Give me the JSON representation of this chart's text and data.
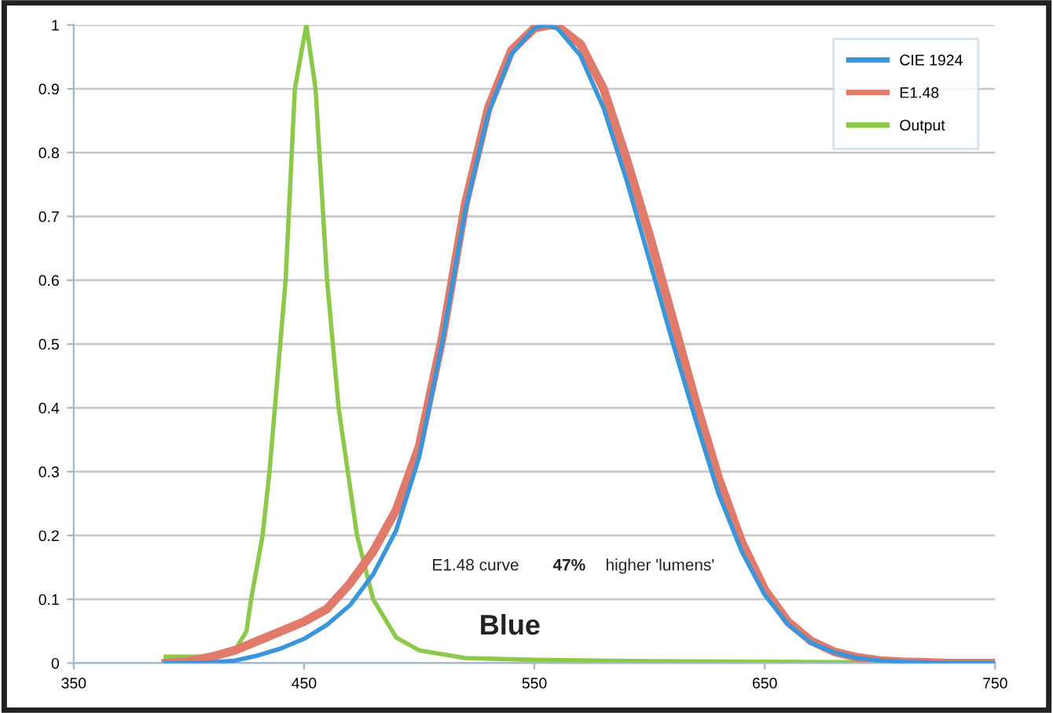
{
  "chart_data": {
    "type": "line",
    "xlim": [
      350,
      750
    ],
    "xticks": [
      350,
      450,
      550,
      650,
      750
    ],
    "ylim": [
      0,
      1
    ],
    "yticks": [
      0,
      0.1,
      0.2,
      0.3,
      0.4,
      0.5,
      0.6,
      0.7,
      0.8,
      0.9,
      1
    ],
    "grid": "y",
    "legend": "top right",
    "marker": "none",
    "line_style": "solid",
    "annotations": [
      "E1.48 curve",
      "47%",
      "higher 'lumens'",
      "Blue"
    ],
    "series": [
      {
        "name": "CIE 1924",
        "color": "#3a96d8",
        "x": [
          390,
          400,
          410,
          420,
          430,
          440,
          450,
          460,
          470,
          480,
          490,
          500,
          510,
          520,
          530,
          540,
          550,
          555,
          560,
          570,
          580,
          590,
          600,
          610,
          620,
          630,
          640,
          650,
          660,
          670,
          680,
          690,
          700,
          710,
          720,
          730,
          740,
          750
        ],
        "values": [
          0.0,
          0.0,
          0.001,
          0.004,
          0.012,
          0.023,
          0.038,
          0.06,
          0.091,
          0.139,
          0.208,
          0.323,
          0.503,
          0.71,
          0.862,
          0.954,
          0.995,
          1.0,
          0.995,
          0.952,
          0.87,
          0.757,
          0.631,
          0.503,
          0.381,
          0.265,
          0.175,
          0.107,
          0.061,
          0.032,
          0.017,
          0.008,
          0.004,
          0.002,
          0.001,
          0.0,
          0.0,
          0.0
        ]
      },
      {
        "name": "E1.48",
        "color": "#e07a6a",
        "x": [
          390,
          400,
          410,
          420,
          430,
          440,
          450,
          460,
          470,
          480,
          490,
          500,
          510,
          520,
          530,
          540,
          550,
          557,
          560,
          570,
          580,
          590,
          600,
          610,
          620,
          630,
          640,
          650,
          660,
          670,
          680,
          690,
          700,
          710,
          720,
          730,
          740,
          750
        ],
        "values": [
          0.0,
          0.003,
          0.01,
          0.02,
          0.035,
          0.05,
          0.065,
          0.085,
          0.125,
          0.175,
          0.24,
          0.34,
          0.51,
          0.72,
          0.87,
          0.96,
          0.995,
          1.0,
          0.998,
          0.97,
          0.9,
          0.79,
          0.67,
          0.54,
          0.41,
          0.29,
          0.19,
          0.115,
          0.065,
          0.035,
          0.018,
          0.009,
          0.004,
          0.002,
          0.001,
          0.0,
          0.0,
          0.0
        ]
      },
      {
        "name": "Output",
        "color": "#8cc84b",
        "x": [
          390,
          410,
          420,
          425,
          427,
          432,
          435,
          442,
          446,
          451,
          455,
          460,
          465,
          469,
          473,
          480,
          490,
          500,
          520,
          550,
          600,
          650,
          700,
          720
        ],
        "values": [
          0.01,
          0.01,
          0.02,
          0.05,
          0.1,
          0.2,
          0.3,
          0.6,
          0.9,
          1.0,
          0.9,
          0.6,
          0.4,
          0.3,
          0.2,
          0.1,
          0.04,
          0.02,
          0.008,
          0.005,
          0.003,
          0.002,
          0.001,
          0.001
        ]
      }
    ]
  }
}
